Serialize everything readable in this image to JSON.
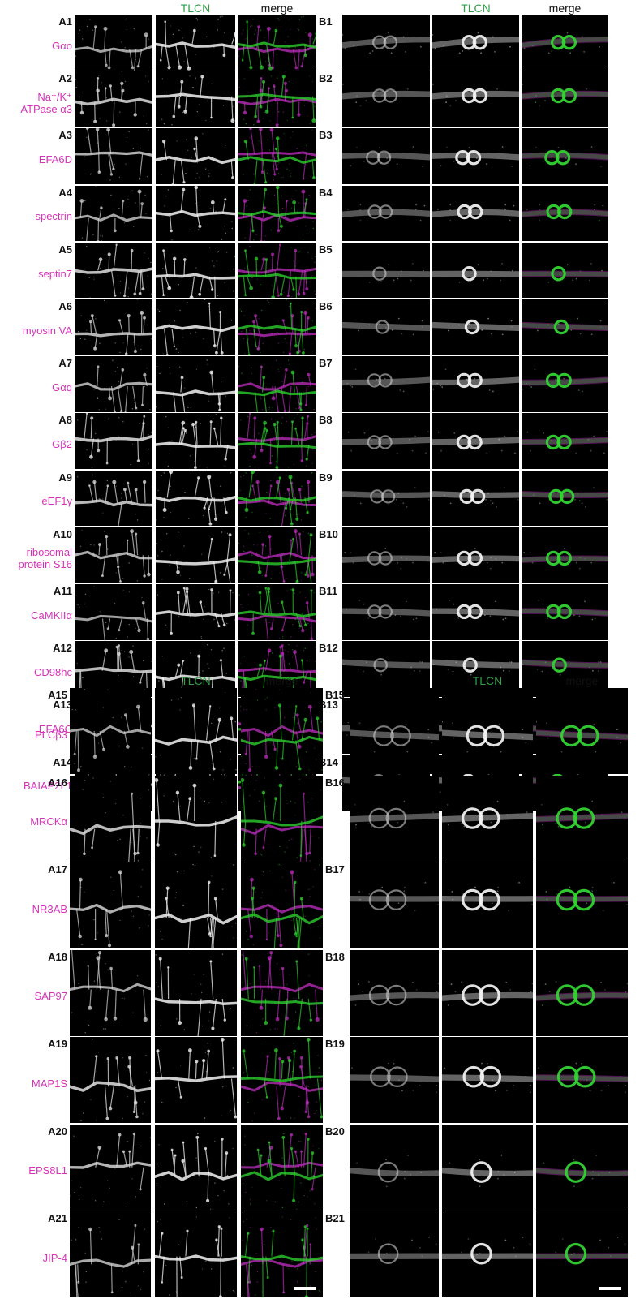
{
  "header_tlcn": "TLCN",
  "header_merge": "merge",
  "colors": {
    "marker": "#d633b8",
    "tlcn_green": "#2f9e44",
    "merge_magenta": "#c22ec2",
    "merge_green": "#2fd62f",
    "background": "#000000"
  },
  "groups": [
    {
      "a_rows": [
        {
          "label": "A1",
          "marker": [
            "Gαo"
          ]
        },
        {
          "label": "A2",
          "marker": [
            "Na⁺/K⁺",
            "ATPase α3"
          ]
        },
        {
          "label": "A3",
          "marker": [
            "EFA6D"
          ]
        },
        {
          "label": "A4",
          "marker": [
            "spectrin"
          ]
        },
        {
          "label": "A5",
          "marker": [
            "septin7"
          ]
        },
        {
          "label": "A6",
          "marker": [
            "myosin VA"
          ]
        },
        {
          "label": "A7",
          "marker": [
            "Gαq"
          ]
        },
        {
          "label": "A8",
          "marker": [
            "Gβ2"
          ]
        },
        {
          "label": "A9",
          "marker": [
            "eEF1γ"
          ]
        },
        {
          "label": "A10",
          "marker": [
            "ribosomal",
            "protein S16"
          ]
        },
        {
          "label": "A11",
          "marker": [
            "CaMKIIα"
          ]
        },
        {
          "label": "A12",
          "marker": [
            "CD98hc"
          ]
        },
        {
          "label": "A13",
          "marker": [
            "EFA6C"
          ]
        },
        {
          "label": "A14",
          "marker": [
            "BAIAP2L1"
          ]
        }
      ],
      "b_labels": [
        "B1",
        "B2",
        "B3",
        "B4",
        "B5",
        "B6",
        "B7",
        "B8",
        "B9",
        "B10",
        "B11",
        "B12",
        "B13",
        "B14"
      ]
    },
    {
      "a_rows": [
        {
          "label": "A15",
          "marker": [
            "PLCβ3"
          ]
        },
        {
          "label": "A16",
          "marker": [
            "MRCKα"
          ]
        },
        {
          "label": "A17",
          "marker": [
            "NR3AB"
          ]
        },
        {
          "label": "A18",
          "marker": [
            "SAP97"
          ]
        },
        {
          "label": "A19",
          "marker": [
            "MAP1S"
          ]
        },
        {
          "label": "A20",
          "marker": [
            "EPS8L1"
          ]
        },
        {
          "label": "A21",
          "marker": [
            "JIP-4"
          ]
        }
      ],
      "b_labels": [
        "B15",
        "B16",
        "B17",
        "B18",
        "B19",
        "B20",
        "B21"
      ]
    }
  ]
}
